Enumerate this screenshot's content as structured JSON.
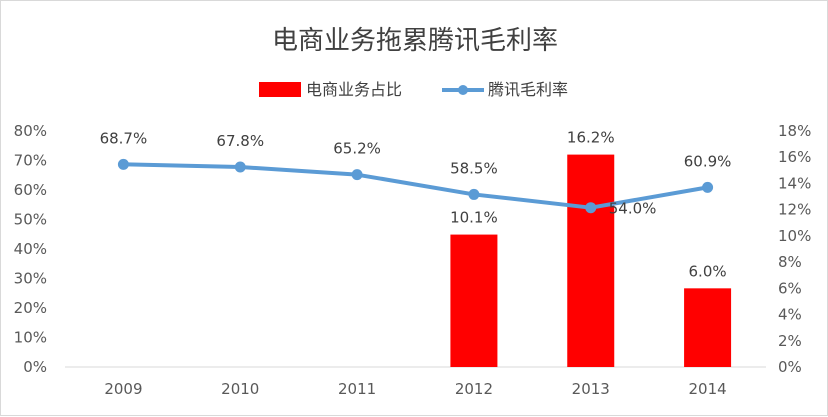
{
  "chart_data": {
    "type": "bar+line",
    "title": "电商业务拖累腾讯毛利率",
    "categories": [
      "2009",
      "2010",
      "2011",
      "2012",
      "2013",
      "2014"
    ],
    "series": [
      {
        "name": "电商业务占比",
        "type": "bar",
        "axis": "right",
        "color": "#ff0000",
        "values": [
          null,
          null,
          null,
          10.1,
          16.2,
          6.0
        ],
        "labels": [
          "",
          "",
          "",
          "10.1%",
          "16.2%",
          "6.0%"
        ]
      },
      {
        "name": "腾讯毛利率",
        "type": "line",
        "axis": "left",
        "color": "#5b9bd5",
        "values": [
          68.7,
          67.8,
          65.2,
          58.5,
          54.0,
          60.9
        ],
        "labels": [
          "68.7%",
          "67.8%",
          "65.2%",
          "58.5%",
          "54.0%",
          "60.9%"
        ]
      }
    ],
    "left_axis": {
      "ylim": [
        0,
        80
      ],
      "ticks": [
        "0%",
        "10%",
        "20%",
        "30%",
        "40%",
        "50%",
        "60%",
        "70%",
        "80%"
      ]
    },
    "right_axis": {
      "ylim": [
        0,
        18
      ],
      "ticks": [
        "0%",
        "2%",
        "4%",
        "6%",
        "8%",
        "10%",
        "12%",
        "14%",
        "16%",
        "18%"
      ]
    },
    "grid": false,
    "legend_position": "top"
  }
}
